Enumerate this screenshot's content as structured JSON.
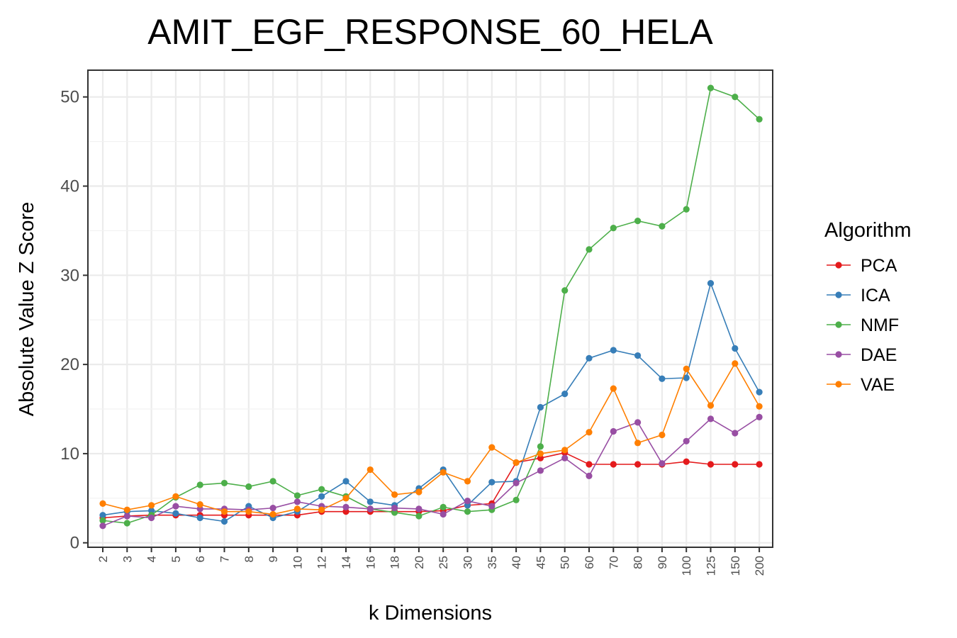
{
  "chart_data": {
    "type": "line",
    "title": "AMIT_EGF_RESPONSE_60_HELA",
    "xlabel": "k Dimensions",
    "ylabel": "Absolute Value Z Score",
    "ylim": [
      -0.5,
      53
    ],
    "yticks": [
      0,
      10,
      20,
      30,
      40,
      50
    ],
    "grid": true,
    "legend": {
      "title": "Algorithm",
      "position": "right"
    },
    "categories": [
      "2",
      "3",
      "4",
      "5",
      "6",
      "7",
      "8",
      "9",
      "10",
      "12",
      "14",
      "16",
      "18",
      "20",
      "25",
      "30",
      "35",
      "40",
      "45",
      "50",
      "60",
      "70",
      "80",
      "90",
      "100",
      "125",
      "150",
      "200"
    ],
    "series": [
      {
        "name": "PCA",
        "color": "#e41a1c",
        "values": [
          2.8,
          3.0,
          3.1,
          3.1,
          3.1,
          3.1,
          3.1,
          3.1,
          3.1,
          3.5,
          3.5,
          3.5,
          3.5,
          3.5,
          3.6,
          4.2,
          4.4,
          9.0,
          9.5,
          10.1,
          8.8,
          8.8,
          8.8,
          8.8,
          9.1,
          8.8,
          8.8,
          8.8
        ]
      },
      {
        "name": "ICA",
        "color": "#377eb8",
        "values": [
          3.1,
          3.5,
          3.6,
          3.3,
          2.8,
          2.4,
          4.1,
          2.8,
          3.5,
          5.2,
          6.9,
          4.6,
          4.2,
          6.1,
          8.2,
          4.2,
          6.8,
          6.9,
          15.2,
          16.7,
          20.7,
          21.6,
          21.0,
          18.4,
          18.5,
          29.1,
          21.8,
          16.9
        ]
      },
      {
        "name": "NMF",
        "color": "#4daf4a",
        "values": [
          2.5,
          2.2,
          3.1,
          5.1,
          6.5,
          6.7,
          6.3,
          6.9,
          5.3,
          6.0,
          5.2,
          3.8,
          3.4,
          3.0,
          4.0,
          3.5,
          3.7,
          4.8,
          10.8,
          28.3,
          32.9,
          35.3,
          36.1,
          35.5,
          37.4,
          51.0,
          50.0,
          47.5
        ]
      },
      {
        "name": "DAE",
        "color": "#984ea3",
        "values": [
          1.9,
          3.0,
          2.8,
          4.1,
          3.8,
          3.8,
          3.7,
          3.9,
          4.6,
          4.1,
          4.0,
          3.8,
          3.9,
          3.8,
          3.2,
          4.7,
          4.1,
          6.7,
          8.1,
          9.5,
          7.5,
          12.5,
          13.5,
          8.9,
          11.4,
          13.9,
          12.3,
          14.1
        ]
      },
      {
        "name": "VAE",
        "color": "#ff7f00",
        "values": [
          4.4,
          3.7,
          4.2,
          5.2,
          4.3,
          3.5,
          3.5,
          3.2,
          3.8,
          3.7,
          5.0,
          8.2,
          5.4,
          5.7,
          7.9,
          6.9,
          10.7,
          9.0,
          10.0,
          10.4,
          12.4,
          17.3,
          11.2,
          12.1,
          19.5,
          15.4,
          20.1,
          15.3
        ]
      }
    ]
  }
}
